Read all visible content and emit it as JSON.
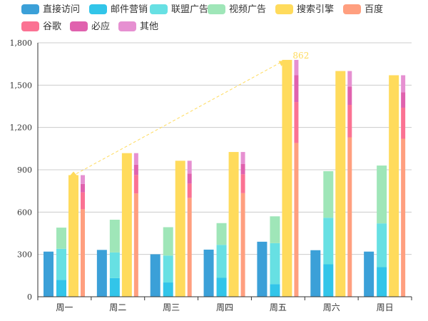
{
  "chart_data": {
    "type": "bar",
    "categories": [
      "周一",
      "周二",
      "周三",
      "周四",
      "周五",
      "周六",
      "周日"
    ],
    "ylim": [
      0,
      1800
    ],
    "yticks": [
      0,
      300,
      600,
      900,
      1200,
      1500,
      1800
    ],
    "ytick_labels": [
      "0",
      "300",
      "600",
      "900",
      "1,200",
      "1,500",
      "1,800"
    ],
    "grid": true,
    "legend_position": "top-left",
    "series": [
      {
        "name": "直接访问",
        "color": "#3ba0d8",
        "stack": null,
        "values": [
          320,
          332,
          301,
          334,
          390,
          330,
          320
        ]
      },
      {
        "name": "邮件营销",
        "color": "#32c5e9",
        "stack": "广告",
        "values": [
          120,
          132,
          101,
          134,
          90,
          230,
          210
        ]
      },
      {
        "name": "联盟广告",
        "color": "#67e0e3",
        "stack": "广告",
        "values": [
          220,
          182,
          191,
          234,
          290,
          330,
          310
        ]
      },
      {
        "name": "视频广告",
        "color": "#9fe6b8",
        "stack": "广告",
        "values": [
          150,
          232,
          201,
          154,
          190,
          330,
          410
        ]
      },
      {
        "name": "搜索引擎",
        "color": "#ffdb5c",
        "stack": null,
        "values": [
          862,
          1018,
          964,
          1026,
          1679,
          1600,
          1570
        ]
      },
      {
        "name": "百度",
        "color": "#ff9f7f",
        "stack": "搜索引擎",
        "values": [
          620,
          732,
          701,
          734,
          1090,
          1130,
          1120
        ]
      },
      {
        "name": "谷歌",
        "color": "#fb7293",
        "stack": "搜索引擎",
        "values": [
          120,
          132,
          101,
          134,
          290,
          230,
          220
        ]
      },
      {
        "name": "必应",
        "color": "#e062ae",
        "stack": "搜索引擎",
        "values": [
          60,
          72,
          71,
          74,
          190,
          130,
          110
        ]
      },
      {
        "name": "其他",
        "color": "#e690d1",
        "stack": "搜索引擎",
        "values": [
          62,
          82,
          91,
          84,
          109,
          110,
          120
        ]
      }
    ],
    "annotation": {
      "series": "搜索引擎",
      "from_category": "周一",
      "to_category": "周五",
      "max_label": "862",
      "style": "dashed-arrow"
    }
  }
}
